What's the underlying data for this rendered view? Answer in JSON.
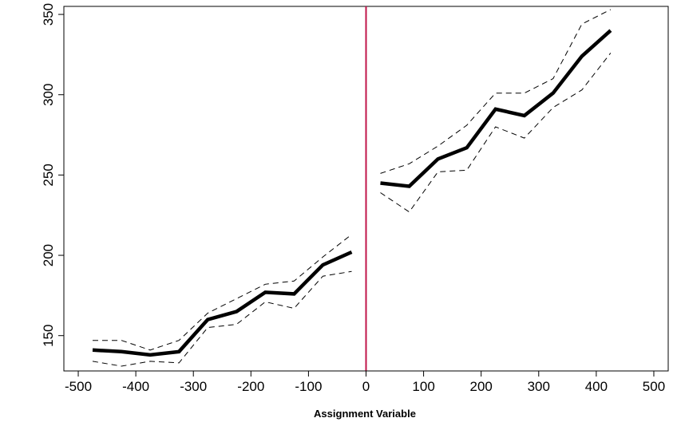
{
  "chart_data": {
    "type": "line",
    "title": "",
    "xlabel": "Assignment Variable",
    "ylabel": "",
    "xlim": [
      -525,
      525
    ],
    "ylim": [
      128,
      355
    ],
    "grid": false,
    "x_ticks": [
      -500,
      -400,
      -300,
      -200,
      -100,
      0,
      100,
      200,
      300,
      400,
      500
    ],
    "y_ticks": [
      150,
      200,
      250,
      300,
      350
    ],
    "cutoff": {
      "x": 0,
      "color": "#c0144a"
    },
    "segments": [
      {
        "x": [
          -475,
          -425,
          -375,
          -325,
          -275,
          -225,
          -175,
          -125,
          -75,
          -25
        ],
        "estimate": [
          141,
          140,
          138,
          140,
          160,
          165,
          177,
          176,
          194,
          202
        ],
        "upper": [
          147,
          147,
          141,
          147,
          164,
          173,
          182,
          184,
          199,
          213
        ],
        "lower": [
          134,
          131,
          134,
          133,
          155,
          157,
          171,
          167,
          187,
          190
        ]
      },
      {
        "x": [
          25,
          75,
          125,
          175,
          225,
          275,
          325,
          375,
          425
        ],
        "estimate": [
          245,
          243,
          260,
          267,
          291,
          287,
          301,
          324,
          340
        ],
        "upper": [
          251,
          257,
          268,
          281,
          301,
          301,
          310,
          344,
          353
        ],
        "lower": [
          239,
          227,
          252,
          253,
          280,
          273,
          292,
          303,
          326
        ]
      }
    ],
    "colors": {
      "line": "#000000",
      "band": "#000000",
      "cutoff": "#c0144a",
      "axis": "#000000"
    }
  }
}
